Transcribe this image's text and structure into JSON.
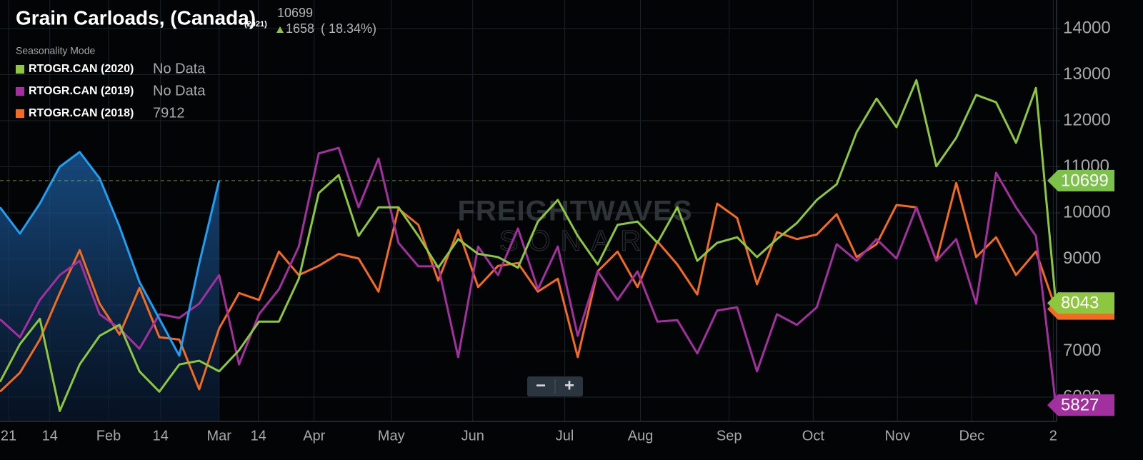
{
  "chart_data": {
    "type": "line",
    "title": "Grain Carloads, (Canada)",
    "subtitle": "(2021)",
    "change": 1658,
    "change_pct_label": "( 18.34%)",
    "legend_title": "Seasonality Mode",
    "watermark": [
      "FREIGHTWAVES",
      "SONAR"
    ],
    "xlim": [
      0,
      53
    ],
    "xticks": [
      {
        "value": 0.43,
        "label": "21"
      },
      {
        "value": 2.5,
        "label": "14"
      },
      {
        "value": 5.45,
        "label": "Feb"
      },
      {
        "value": 8.06,
        "label": "14"
      },
      {
        "value": 11.0,
        "label": "Mar"
      },
      {
        "value": 12.97,
        "label": "14"
      },
      {
        "value": 15.77,
        "label": "Apr"
      },
      {
        "value": 19.64,
        "label": "May"
      },
      {
        "value": 23.73,
        "label": "Jun"
      },
      {
        "value": 28.35,
        "label": "Jul"
      },
      {
        "value": 32.15,
        "label": "Aug"
      },
      {
        "value": 36.6,
        "label": "Sep"
      },
      {
        "value": 40.82,
        "label": "Oct"
      },
      {
        "value": 45.05,
        "label": "Nov"
      },
      {
        "value": 48.78,
        "label": "Dec"
      },
      {
        "value": 52.87,
        "label": "2"
      }
    ],
    "ylim": [
      5473,
      14620
    ],
    "yticks": [
      6000,
      7000,
      8000,
      9000,
      10000,
      11000,
      12000,
      13000,
      14000
    ],
    "grid": true,
    "series": [
      {
        "color": "#1e9ff2",
        "area": true,
        "values": [
          10120,
          9550,
          10200,
          11000,
          11320,
          10750,
          9700,
          8500,
          7700,
          6900,
          8900,
          10699,
          null,
          null,
          null,
          null,
          null,
          null,
          null,
          null,
          null,
          null,
          null,
          null,
          null,
          null,
          null,
          null,
          null,
          null,
          null,
          null,
          null,
          null,
          null,
          null,
          null,
          null,
          null,
          null,
          null,
          null,
          null,
          null,
          null,
          null,
          null,
          null,
          null,
          null,
          null,
          null,
          null,
          null
        ]
      },
      {
        "name": "RTOGR.CAN (2020)",
        "color": "#8dc63f",
        "legend_value": "No Data",
        "values": [
          6330,
          7150,
          7700,
          5700,
          6710,
          7330,
          7570,
          6560,
          6120,
          6710,
          6790,
          6560,
          7020,
          7640,
          7640,
          8570,
          10430,
          10820,
          9500,
          10120,
          10120,
          9500,
          8810,
          9430,
          9110,
          9040,
          8810,
          9810,
          10280,
          9500,
          8880,
          9740,
          9810,
          9350,
          10120,
          8960,
          9350,
          9470,
          9040,
          9430,
          9780,
          10280,
          10620,
          11750,
          12480,
          11860,
          12880,
          11010,
          11630,
          12560,
          12400,
          11520,
          12710,
          8043
        ]
      },
      {
        "name": "RTOGR.CAN (2019)",
        "color": "#a3309f",
        "legend_value": "No Data",
        "values": [
          7690,
          7300,
          8110,
          8650,
          8960,
          7800,
          7490,
          7050,
          7800,
          7720,
          8030,
          8650,
          6710,
          7800,
          8340,
          9270,
          11290,
          11410,
          10120,
          11180,
          9350,
          8840,
          8840,
          6870,
          9270,
          8650,
          9660,
          8340,
          9270,
          7330,
          8730,
          8110,
          8730,
          7640,
          7670,
          6950,
          7880,
          7950,
          6560,
          7800,
          7570,
          7950,
          9320,
          8960,
          9430,
          9010,
          10120,
          8960,
          9430,
          8030,
          10870,
          10120,
          9500,
          5827
        ]
      },
      {
        "name": "RTOGR.CAN (2018)",
        "color": "#f26b21",
        "values": [
          6120,
          6530,
          7250,
          8260,
          9190,
          8030,
          7360,
          8370,
          7300,
          7250,
          6170,
          7490,
          8260,
          8110,
          9160,
          8650,
          8850,
          9110,
          9010,
          8290,
          10090,
          9740,
          8530,
          9630,
          8390,
          8850,
          8910,
          8290,
          8570,
          6870,
          8730,
          9160,
          8390,
          9380,
          8880,
          8230,
          10200,
          9890,
          8450,
          9580,
          9430,
          9530,
          9970,
          9040,
          9320,
          10170,
          10120,
          8960,
          10650,
          9040,
          9470,
          8650,
          9160,
          7912
        ]
      }
    ]
  },
  "zoom_controls": [
    "−",
    "+"
  ]
}
